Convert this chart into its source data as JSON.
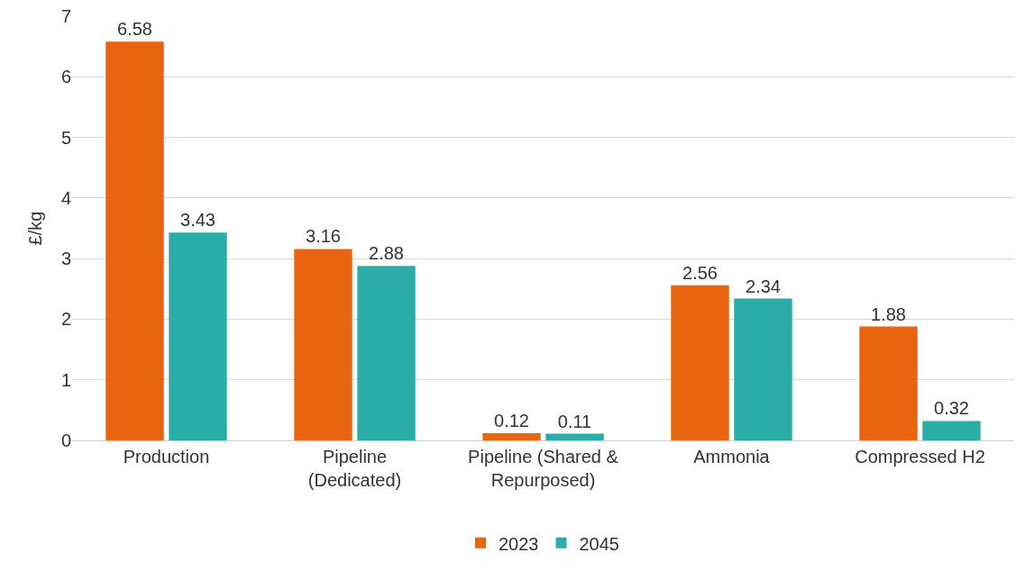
{
  "chart_data": {
    "type": "bar",
    "ylabel": "£/kg",
    "categories": [
      "Production",
      "Pipeline\n(Dedicated)",
      "Pipeline (Shared &\nRepurposed)",
      "Ammonia",
      "Compressed H2"
    ],
    "series": [
      {
        "name": "2023",
        "color": "#e8640f",
        "values": [
          6.58,
          3.16,
          0.12,
          2.56,
          1.88
        ]
      },
      {
        "name": "2045",
        "color": "#2aaca8",
        "values": [
          3.43,
          2.88,
          0.11,
          2.34,
          0.32
        ]
      }
    ],
    "ylim": [
      0,
      7
    ],
    "yticks": [
      0,
      1,
      2,
      3,
      4,
      5,
      6,
      7
    ],
    "grid": "y",
    "legend": "bottom",
    "data_labels": true
  }
}
